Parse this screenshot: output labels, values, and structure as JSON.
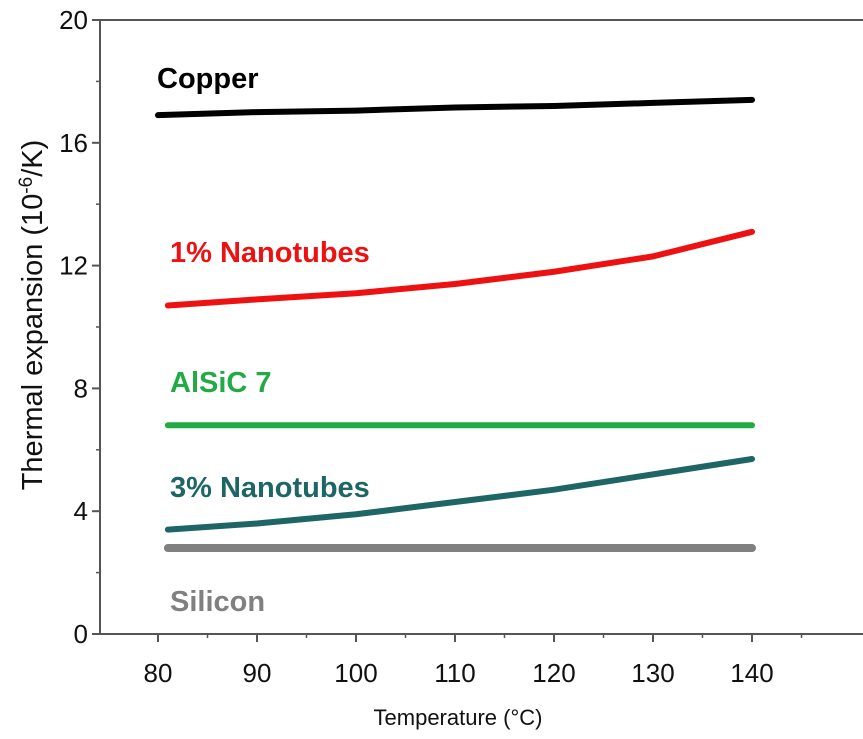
{
  "chart_data": {
    "type": "line",
    "xlabel": "Temperature (°C)",
    "ylabel_main": "Thermal expansion (10",
    "ylabel_sup": "-6",
    "ylabel_tail": "/K)",
    "xlim": [
      75,
      150
    ],
    "ylim": [
      0,
      20
    ],
    "x_ticks": [
      80,
      90,
      100,
      110,
      120,
      130,
      140
    ],
    "y_ticks": [
      0,
      4,
      8,
      12,
      16,
      20
    ],
    "series": [
      {
        "name": "Copper",
        "color": "#000000",
        "x": [
          80,
          90,
          100,
          110,
          120,
          130,
          140
        ],
        "y": [
          16.9,
          17.0,
          17.05,
          17.15,
          17.2,
          17.3,
          17.4
        ]
      },
      {
        "name": "1% Nanotubes",
        "color": "#ee1111",
        "x": [
          81,
          90,
          100,
          110,
          120,
          130,
          140
        ],
        "y": [
          10.7,
          10.9,
          11.1,
          11.4,
          11.8,
          12.3,
          13.1
        ]
      },
      {
        "name": "AlSiC 7",
        "color": "#22aa44",
        "x": [
          81,
          140
        ],
        "y": [
          6.8,
          6.8
        ]
      },
      {
        "name": "3% Nanotubes",
        "color": "#1e6666",
        "x": [
          81,
          90,
          100,
          110,
          120,
          130,
          140
        ],
        "y": [
          3.4,
          3.6,
          3.9,
          4.3,
          4.7,
          5.2,
          5.7
        ]
      },
      {
        "name": "Silicon",
        "color": "#808080",
        "x": [
          81,
          140
        ],
        "y": [
          2.8,
          2.8
        ]
      }
    ]
  }
}
